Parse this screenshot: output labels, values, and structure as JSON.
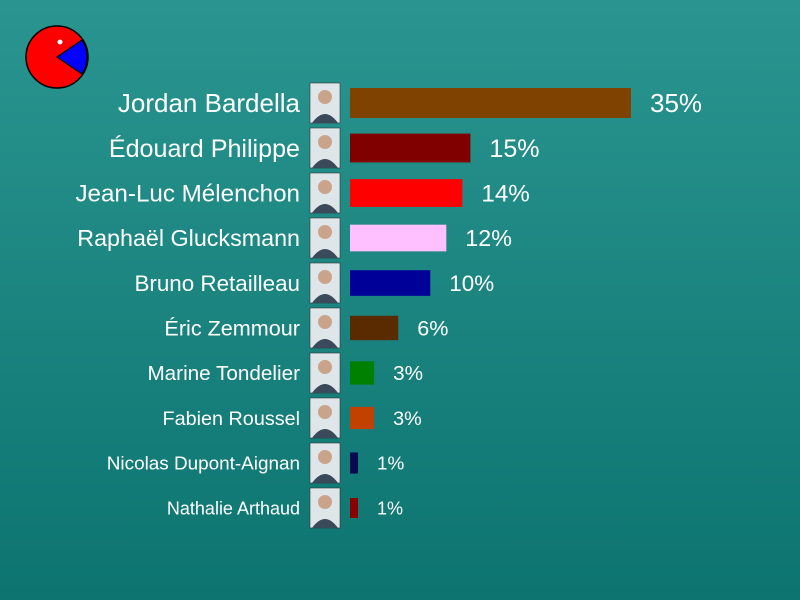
{
  "chart_data": {
    "type": "bar",
    "orientation": "horizontal",
    "categories": [
      "Jordan Bardella",
      "Édouard Philippe",
      "Jean-Luc Mélenchon",
      "Raphaël Glucksmann",
      "Bruno Retailleau",
      "Éric Zemmour",
      "Marine Tondelier",
      "Fabien Roussel",
      "Nicolas Dupont-Aignan",
      "Nathalie Arthaud"
    ],
    "values": [
      35,
      15,
      14,
      12,
      10,
      6,
      3,
      3,
      1,
      1
    ],
    "value_labels": [
      "35%",
      "15%",
      "14%",
      "12%",
      "10%",
      "6%",
      "3%",
      "3%",
      "1%",
      "1%"
    ],
    "colors": [
      "#7f4200",
      "#800000",
      "#ff0000",
      "#ffc0ff",
      "#000099",
      "#5a2a00",
      "#008000",
      "#c24000",
      "#0a0a50",
      "#8b0000"
    ],
    "xlim": [
      0,
      35
    ],
    "grid": false,
    "legend": "none"
  },
  "logo": {
    "icon": "pie-chart-logo-icon",
    "colors": {
      "main": "#ff0000",
      "slice": "#0000ff",
      "outline": "#000000"
    }
  }
}
